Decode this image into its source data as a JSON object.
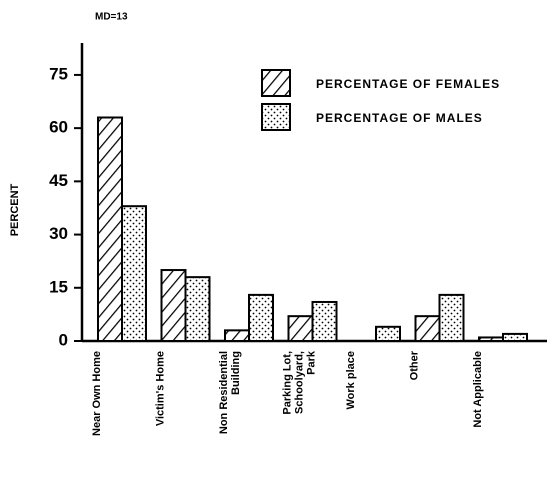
{
  "chart_data": {
    "type": "bar",
    "annotation": "MD=13",
    "y_label": "PERCENT",
    "categories": [
      [
        "Near Own Home"
      ],
      [
        "Victim's Home"
      ],
      [
        "Non Residential",
        "Building"
      ],
      [
        "Parking Lot,",
        "Schoolyard,",
        "Park"
      ],
      [
        "Work place"
      ],
      [
        "Other"
      ],
      [
        "Not Applicable"
      ]
    ],
    "series": [
      {
        "name": "PERCENTAGE OF FEMALES",
        "color": "#000000",
        "pattern": "hatch",
        "values": [
          63,
          20,
          3,
          7,
          0,
          7,
          1
        ]
      },
      {
        "name": "PERCENTAGE OF MALES",
        "color": "#000000",
        "pattern": "dots",
        "values": [
          38,
          18,
          13,
          11,
          4,
          13,
          2
        ]
      }
    ],
    "ylim": [
      0,
      84
    ],
    "yticks": [
      0,
      15,
      30,
      45,
      60,
      75
    ],
    "grid": false,
    "legend": "upper right"
  }
}
